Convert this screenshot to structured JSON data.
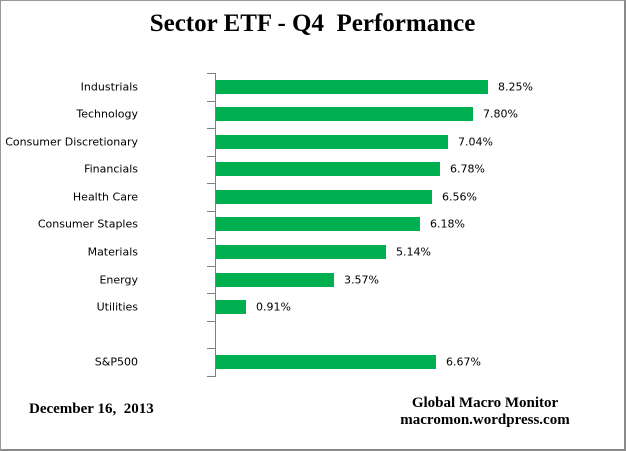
{
  "title": "Sector ETF - Q4  Performance",
  "chart_data": {
    "type": "bar",
    "orientation": "horizontal",
    "title": "Sector ETF - Q4  Performance",
    "categories": [
      "Industrials",
      "Technology",
      "Consumer Discretionary",
      "Financials",
      "Health Care",
      "Consumer Staples",
      "Materials",
      "Energy",
      "Utilities",
      "",
      "S&P500"
    ],
    "values": [
      8.25,
      7.8,
      7.04,
      6.78,
      6.56,
      6.18,
      5.14,
      3.57,
      0.91,
      null,
      6.67
    ],
    "value_labels": [
      "8.25%",
      "7.80%",
      "7.04%",
      "6.78%",
      "6.56%",
      "6.18%",
      "5.14%",
      "3.57%",
      "0.91%",
      "",
      "6.67%"
    ],
    "xlim": [
      0,
      9.2
    ],
    "grid": false,
    "legend": false,
    "bar_color": "#00B050",
    "axis_color": "#808080"
  },
  "footer": {
    "date": "December 16,  2013",
    "attribution_line1": "Global Macro Monitor",
    "attribution_line2": "macromon.wordpress.com"
  }
}
